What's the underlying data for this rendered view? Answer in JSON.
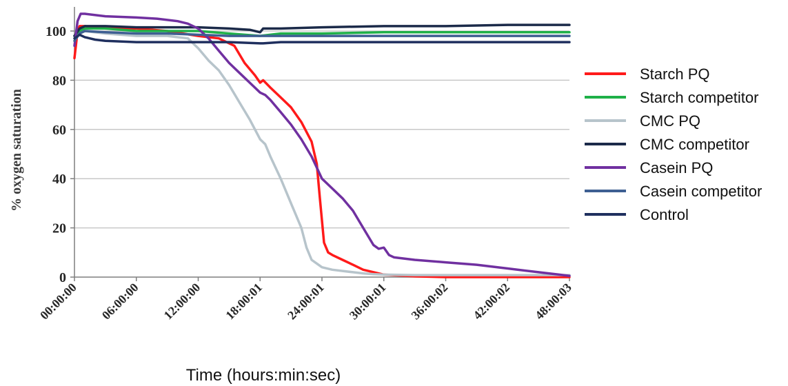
{
  "chart_data": {
    "type": "line",
    "title": "",
    "xlabel": "Time (hours:min:sec)",
    "ylabel": "% oxygen saturation",
    "x_unit": "hours",
    "x_ticks": [
      0,
      6,
      12,
      18,
      24,
      30,
      36,
      42,
      48
    ],
    "x_tick_labels": [
      "00:00:00",
      "06:00:00",
      "12:00:00",
      "18:00:01",
      "24:00:01",
      "30:00:01",
      "36:00:02",
      "42:00:02",
      "48:00:03"
    ],
    "xlim": [
      0,
      48
    ],
    "ylim": [
      0,
      110
    ],
    "y_ticks": [
      0,
      20,
      40,
      60,
      80,
      100
    ],
    "grid": "horizontal",
    "legend_position": "right",
    "series": [
      {
        "name": "Starch PQ",
        "color": "#ff1a1a",
        "x": [
          0,
          0.3,
          0.5,
          1,
          3,
          6,
          9,
          12,
          14,
          15.5,
          16.5,
          17.5,
          18,
          18.3,
          19,
          20,
          21,
          22,
          23,
          23.5,
          23.8,
          24.2,
          24.6,
          25,
          26,
          27,
          28,
          30,
          33,
          36,
          48
        ],
        "y": [
          89,
          100,
          102,
          102,
          101,
          101,
          100,
          98,
          97,
          94,
          87,
          82,
          79,
          80,
          77,
          73,
          69,
          63,
          55,
          46,
          32,
          14,
          10,
          9,
          7,
          5,
          3,
          1,
          0.3,
          0,
          0
        ]
      },
      {
        "name": "Starch competitor",
        "color": "#1fb048",
        "x": [
          0,
          0.5,
          1,
          3,
          6,
          9,
          12,
          15,
          18,
          20,
          24,
          30,
          36,
          42,
          48
        ],
        "y": [
          98,
          100,
          101,
          101,
          100,
          100,
          100,
          99,
          98,
          99,
          99,
          99.5,
          99.5,
          99.5,
          99.5
        ]
      },
      {
        "name": "CMC PQ",
        "color": "#b7c4cb",
        "x": [
          0,
          0.5,
          1,
          3,
          6,
          9,
          11,
          12,
          13,
          14,
          15,
          16,
          17,
          18,
          18.5,
          19,
          20,
          21,
          22,
          22.5,
          23,
          24,
          25,
          26,
          27,
          28,
          29,
          30,
          33,
          36,
          40,
          48
        ],
        "y": [
          96,
          99,
          100,
          99,
          98,
          98,
          97,
          93,
          88,
          84,
          78,
          71,
          64,
          56,
          54,
          49,
          40,
          30,
          20,
          12,
          7,
          4,
          3,
          2.5,
          2,
          1.5,
          1.2,
          1,
          0.8,
          0.8,
          0.8,
          0.8
        ]
      },
      {
        "name": "CMC competitor",
        "color": "#1b2a49",
        "x": [
          0,
          0.5,
          1,
          3,
          6,
          9,
          12,
          15,
          17,
          18,
          18.3,
          20,
          24,
          30,
          36,
          42,
          48
        ],
        "y": [
          98,
          101,
          102,
          102,
          101.5,
          101.5,
          101.5,
          101,
          100.5,
          99.5,
          101,
          101,
          101.5,
          102,
          102,
          102.5,
          102.5
        ]
      },
      {
        "name": "Casein PQ",
        "color": "#7030a0",
        "x": [
          0,
          0.3,
          0.6,
          1,
          3,
          6,
          8,
          10,
          11,
          12,
          13,
          14,
          15,
          16,
          17,
          18,
          18.5,
          19,
          20,
          21,
          22,
          23,
          24,
          25,
          26,
          27,
          28,
          29,
          29.5,
          30,
          30.5,
          31,
          33,
          36,
          39,
          42,
          45,
          47,
          48
        ],
        "y": [
          94,
          104,
          107,
          107,
          106,
          105.5,
          105,
          104,
          103,
          101,
          97,
          92,
          87,
          83,
          79,
          75,
          74,
          72,
          67,
          62,
          56,
          49,
          40,
          36,
          32,
          27,
          20,
          13,
          11.5,
          12,
          9,
          8,
          7,
          6,
          5,
          3.5,
          2,
          1,
          0.5
        ]
      },
      {
        "name": "Casein competitor",
        "color": "#3e5f92",
        "x": [
          0,
          0.5,
          1,
          3,
          6,
          9,
          12,
          15,
          18,
          20,
          24,
          30,
          36,
          42,
          48
        ],
        "y": [
          96,
          99,
          100,
          99.5,
          99,
          99,
          98.5,
          98,
          98,
          98,
          98,
          98,
          98,
          98,
          98
        ]
      },
      {
        "name": "Control",
        "color": "#1f2f5e",
        "x": [
          0,
          0.5,
          1,
          2,
          3,
          6,
          9,
          12,
          15,
          18,
          18.3,
          20,
          24,
          30,
          36,
          42,
          48
        ],
        "y": [
          97,
          98.5,
          97.5,
          96.5,
          96,
          95.5,
          95.5,
          95.5,
          95.5,
          95,
          95,
          95.5,
          95.5,
          95.5,
          95.5,
          95.5,
          95.5
        ]
      }
    ]
  }
}
